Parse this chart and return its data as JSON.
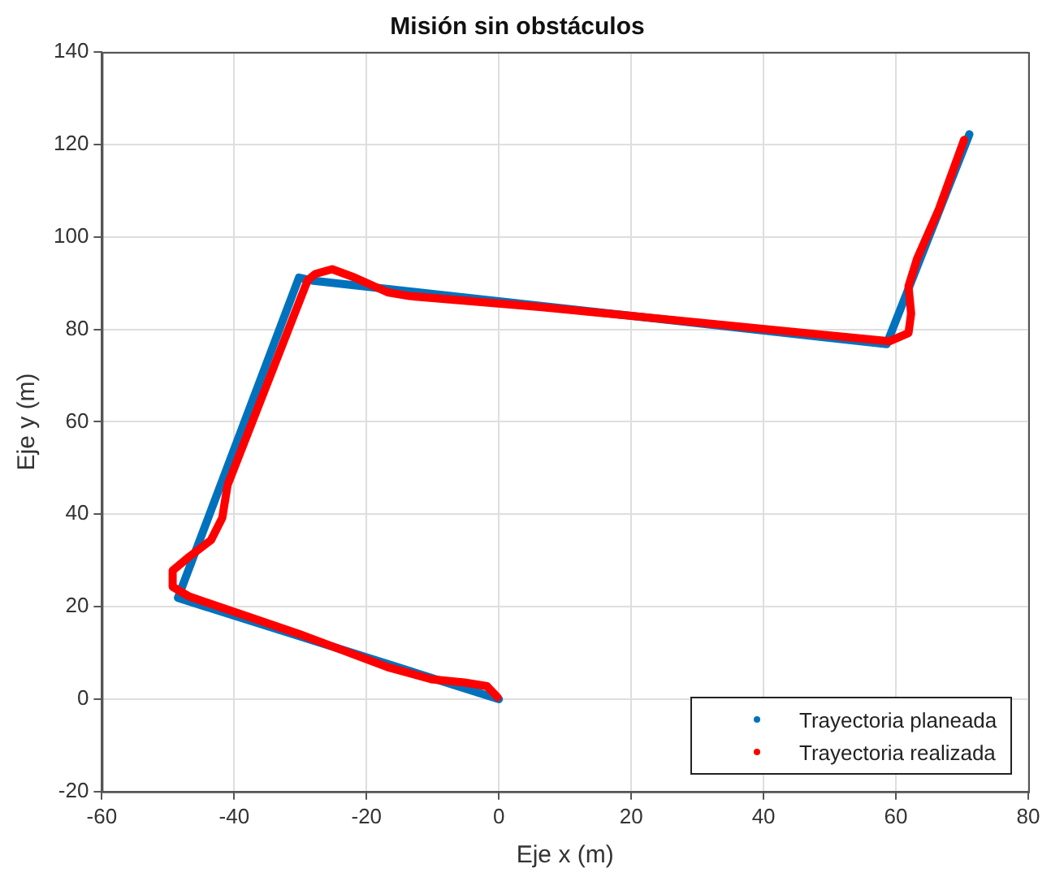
{
  "chart_data": {
    "type": "line",
    "title": "Misión sin obstáculos",
    "xlabel": "Eje x (m)",
    "ylabel": "Eje y (m)",
    "xlim": [
      -60,
      80
    ],
    "xticks": [
      -60,
      -40,
      -20,
      0,
      20,
      40,
      60,
      80
    ],
    "ylim": [
      -20,
      140
    ],
    "yticks": [
      -20,
      0,
      20,
      40,
      60,
      80,
      100,
      120,
      140
    ],
    "grid": true,
    "legend": "bottom right",
    "marker": "none",
    "line_style": "solid",
    "series": [
      {
        "name": "Trayectoria planeada",
        "color": "#0072bd",
        "x": [
          0,
          -48.5,
          -30.2,
          -28,
          58.6,
          71.1
        ],
        "values": [
          0,
          21.9,
          91.2,
          90.5,
          76.8,
          122.2
        ]
      },
      {
        "name": "Trayectoria realizada",
        "color": "#ff0000",
        "x": [
          -0.2,
          -1.8,
          -5.2,
          -10.2,
          -16.8,
          -30.2,
          -46.8,
          -49.3,
          -49.3,
          -46.8,
          -43.5,
          -41.8,
          -41,
          -28.9,
          -27.7,
          -25.2,
          -21.8,
          -16.8,
          -13.5,
          6.5,
          59,
          61.9,
          62.3,
          61.9,
          63.2,
          66.5,
          70.3
        ],
        "values": [
          0.4,
          2.8,
          3.6,
          4.3,
          6.9,
          14.1,
          22.2,
          24.3,
          27.8,
          30.8,
          34.4,
          39.2,
          46.3,
          90.6,
          92,
          93,
          91.2,
          88,
          87.2,
          84.8,
          77.4,
          79.2,
          83.4,
          89.3,
          95.3,
          106,
          121
        ]
      }
    ]
  }
}
